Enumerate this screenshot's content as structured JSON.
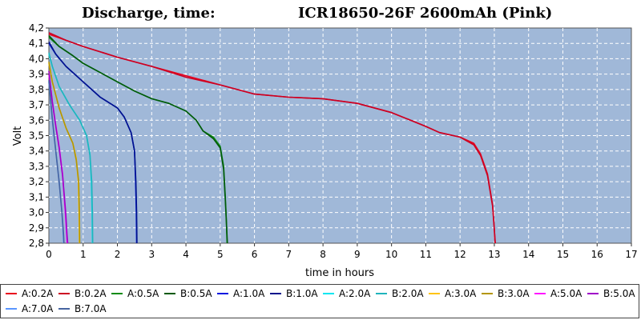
{
  "chart_data": {
    "type": "line",
    "title_left": "Discharge, time:",
    "title_right": "ICR18650-26F 2600mAh (Pink)",
    "xlabel": "time in hours",
    "ylabel": "Volt",
    "xlim": [
      0,
      17
    ],
    "ylim": [
      2.8,
      4.2
    ],
    "x_ticks": [
      0,
      1,
      2,
      3,
      4,
      5,
      6,
      7,
      8,
      9,
      10,
      11,
      12,
      13,
      14,
      15,
      16,
      17
    ],
    "y_ticks": [
      "2,8",
      "2,9",
      "3,0",
      "3,1",
      "3,2",
      "3,3",
      "3,4",
      "3,5",
      "3,6",
      "3,7",
      "3,8",
      "3,9",
      "4,0",
      "4,1",
      "4,2"
    ],
    "grid": true,
    "legend_position": "bottom",
    "series": [
      {
        "name": "A:0.2A",
        "color": "#e8001c",
        "points": [
          [
            0,
            4.16
          ],
          [
            0.5,
            4.12
          ],
          [
            1,
            4.08
          ],
          [
            2,
            4.01
          ],
          [
            3,
            3.95
          ],
          [
            4,
            3.89
          ],
          [
            5,
            3.83
          ],
          [
            6,
            3.77
          ],
          [
            7,
            3.75
          ],
          [
            8,
            3.74
          ],
          [
            9,
            3.71
          ],
          [
            10,
            3.65
          ],
          [
            11,
            3.56
          ],
          [
            11.4,
            3.52
          ],
          [
            12,
            3.49
          ],
          [
            12.4,
            3.45
          ],
          [
            12.6,
            3.38
          ],
          [
            12.8,
            3.25
          ],
          [
            12.95,
            3.05
          ],
          [
            13.0,
            2.9
          ],
          [
            13.02,
            2.8
          ]
        ]
      },
      {
        "name": "B:0.2A",
        "color": "#cc0022",
        "points": [
          [
            0,
            4.17
          ],
          [
            0.5,
            4.12
          ],
          [
            1,
            4.08
          ],
          [
            2,
            4.01
          ],
          [
            3,
            3.95
          ],
          [
            4,
            3.88
          ],
          [
            5,
            3.83
          ],
          [
            6,
            3.77
          ],
          [
            7,
            3.75
          ],
          [
            8,
            3.74
          ],
          [
            9,
            3.71
          ],
          [
            10,
            3.65
          ],
          [
            11,
            3.56
          ],
          [
            11.4,
            3.52
          ],
          [
            12,
            3.49
          ],
          [
            12.4,
            3.44
          ],
          [
            12.6,
            3.37
          ],
          [
            12.8,
            3.24
          ],
          [
            12.95,
            3.04
          ],
          [
            13.0,
            2.89
          ],
          [
            13.03,
            2.8
          ]
        ]
      },
      {
        "name": "A:0.5A",
        "color": "#0a8c14",
        "points": [
          [
            0,
            4.14
          ],
          [
            0.3,
            4.08
          ],
          [
            0.7,
            4.02
          ],
          [
            1,
            3.97
          ],
          [
            1.5,
            3.91
          ],
          [
            2,
            3.85
          ],
          [
            2.5,
            3.79
          ],
          [
            3,
            3.74
          ],
          [
            3.5,
            3.71
          ],
          [
            4,
            3.66
          ],
          [
            4.3,
            3.6
          ],
          [
            4.5,
            3.53
          ],
          [
            4.8,
            3.49
          ],
          [
            5.0,
            3.43
          ],
          [
            5.1,
            3.3
          ],
          [
            5.15,
            3.1
          ],
          [
            5.18,
            2.95
          ],
          [
            5.2,
            2.8
          ]
        ]
      },
      {
        "name": "B:0.5A",
        "color": "#005a0a",
        "points": [
          [
            0,
            4.15
          ],
          [
            0.3,
            4.08
          ],
          [
            0.7,
            4.02
          ],
          [
            1,
            3.97
          ],
          [
            1.5,
            3.91
          ],
          [
            2,
            3.85
          ],
          [
            2.5,
            3.79
          ],
          [
            3,
            3.74
          ],
          [
            3.5,
            3.71
          ],
          [
            4,
            3.66
          ],
          [
            4.3,
            3.6
          ],
          [
            4.5,
            3.53
          ],
          [
            4.8,
            3.48
          ],
          [
            5.0,
            3.42
          ],
          [
            5.1,
            3.28
          ],
          [
            5.15,
            3.08
          ],
          [
            5.18,
            2.94
          ],
          [
            5.21,
            2.8
          ]
        ]
      },
      {
        "name": "A:1.0A",
        "color": "#0018e0",
        "points": [
          [
            0,
            4.1
          ],
          [
            0.2,
            4.03
          ],
          [
            0.5,
            3.95
          ],
          [
            1,
            3.85
          ],
          [
            1.5,
            3.75
          ],
          [
            2,
            3.68
          ],
          [
            2.2,
            3.62
          ],
          [
            2.4,
            3.52
          ],
          [
            2.5,
            3.4
          ],
          [
            2.53,
            3.2
          ],
          [
            2.55,
            3.0
          ],
          [
            2.56,
            2.8
          ]
        ]
      },
      {
        "name": "B:1.0A",
        "color": "#00128c",
        "points": [
          [
            0,
            4.11
          ],
          [
            0.2,
            4.03
          ],
          [
            0.5,
            3.95
          ],
          [
            1,
            3.85
          ],
          [
            1.5,
            3.75
          ],
          [
            2,
            3.68
          ],
          [
            2.2,
            3.62
          ],
          [
            2.4,
            3.52
          ],
          [
            2.5,
            3.4
          ],
          [
            2.54,
            3.2
          ],
          [
            2.56,
            3.0
          ],
          [
            2.57,
            2.8
          ]
        ]
      },
      {
        "name": "A:2.0A",
        "color": "#00e6f0",
        "points": [
          [
            0,
            4.03
          ],
          [
            0.1,
            3.95
          ],
          [
            0.3,
            3.82
          ],
          [
            0.6,
            3.7
          ],
          [
            0.9,
            3.6
          ],
          [
            1.1,
            3.5
          ],
          [
            1.2,
            3.38
          ],
          [
            1.24,
            3.2
          ],
          [
            1.26,
            3.0
          ],
          [
            1.27,
            2.8
          ]
        ]
      },
      {
        "name": "B:2.0A",
        "color": "#20b4bc",
        "points": [
          [
            0,
            4.04
          ],
          [
            0.1,
            3.95
          ],
          [
            0.3,
            3.82
          ],
          [
            0.6,
            3.7
          ],
          [
            0.9,
            3.6
          ],
          [
            1.1,
            3.5
          ],
          [
            1.2,
            3.37
          ],
          [
            1.25,
            3.2
          ],
          [
            1.27,
            3.0
          ],
          [
            1.28,
            2.8
          ]
        ]
      },
      {
        "name": "A:3.0A",
        "color": "#ffc40a",
        "points": [
          [
            0,
            3.97
          ],
          [
            0.1,
            3.85
          ],
          [
            0.3,
            3.68
          ],
          [
            0.5,
            3.55
          ],
          [
            0.7,
            3.45
          ],
          [
            0.8,
            3.35
          ],
          [
            0.86,
            3.2
          ],
          [
            0.88,
            3.0
          ],
          [
            0.89,
            2.8
          ]
        ]
      },
      {
        "name": "B:3.0A",
        "color": "#b49600",
        "points": [
          [
            0,
            3.98
          ],
          [
            0.1,
            3.85
          ],
          [
            0.3,
            3.68
          ],
          [
            0.5,
            3.55
          ],
          [
            0.7,
            3.45
          ],
          [
            0.8,
            3.34
          ],
          [
            0.87,
            3.2
          ],
          [
            0.89,
            3.0
          ],
          [
            0.9,
            2.8
          ]
        ]
      },
      {
        "name": "A:5.0A",
        "color": "#ff14ff",
        "points": [
          [
            0,
            3.9
          ],
          [
            0.1,
            3.72
          ],
          [
            0.2,
            3.57
          ],
          [
            0.3,
            3.43
          ],
          [
            0.4,
            3.25
          ],
          [
            0.48,
            3.0
          ],
          [
            0.52,
            2.85
          ],
          [
            0.53,
            2.8
          ]
        ]
      },
      {
        "name": "B:5.0A",
        "color": "#a000c8",
        "points": [
          [
            0,
            3.92
          ],
          [
            0.1,
            3.72
          ],
          [
            0.2,
            3.56
          ],
          [
            0.3,
            3.42
          ],
          [
            0.4,
            3.24
          ],
          [
            0.49,
            3.0
          ],
          [
            0.53,
            2.85
          ],
          [
            0.55,
            2.8
          ]
        ]
      },
      {
        "name": "A:7.0A",
        "color": "#5a96ff",
        "points": [
          [
            0,
            3.85
          ],
          [
            0.1,
            3.6
          ],
          [
            0.2,
            3.4
          ],
          [
            0.3,
            3.2
          ],
          [
            0.38,
            3.0
          ],
          [
            0.42,
            2.85
          ],
          [
            0.43,
            2.8
          ]
        ]
      },
      {
        "name": "B:7.0A",
        "color": "#4664a0",
        "points": [
          [
            0,
            3.86
          ],
          [
            0.1,
            3.61
          ],
          [
            0.2,
            3.4
          ],
          [
            0.3,
            3.2
          ],
          [
            0.38,
            3.0
          ],
          [
            0.43,
            2.85
          ],
          [
            0.44,
            2.8
          ]
        ]
      }
    ]
  }
}
